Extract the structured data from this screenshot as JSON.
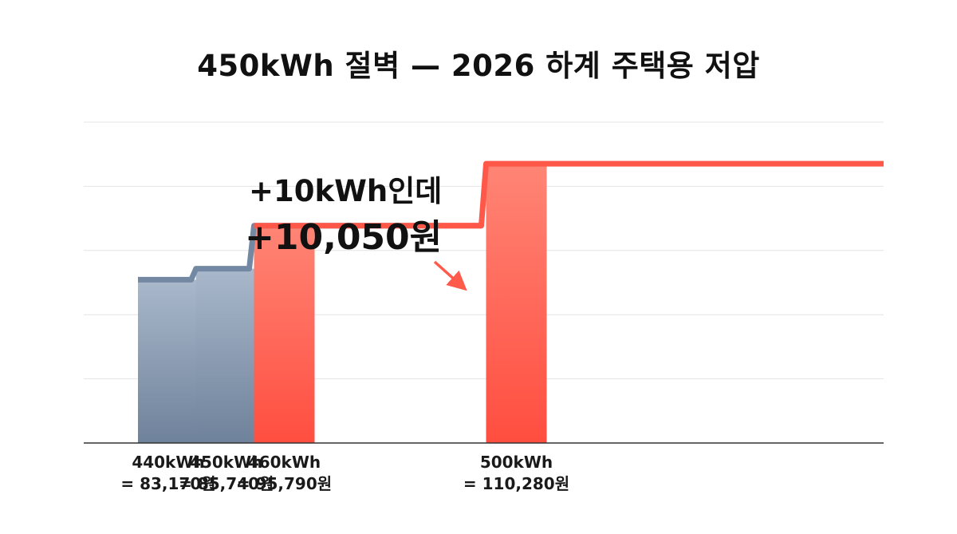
{
  "chart_data": {
    "type": "bar",
    "title": "450kWh 절벽 — 2026 하계 주택용 저압",
    "xlabel": "",
    "ylabel": "",
    "categories": [
      "440kWh",
      "450kWh",
      "460kWh",
      "500kWh"
    ],
    "x": [
      440,
      450,
      460,
      500
    ],
    "values": [
      83170,
      85740,
      95790,
      110280
    ],
    "value_labels": [
      "= 83,170원",
      "= 85,740원",
      "= 95,790원",
      "= 110,280원"
    ],
    "ylim": [
      45000,
      120000
    ],
    "grid": true,
    "legend": "none",
    "annotation": {
      "line1": "+10kWh인데",
      "line2": "+10,050원"
    },
    "colors": {
      "below_threshold_top": "#a9b8cb",
      "below_threshold_bottom": "#6f829b",
      "above_threshold_top": "#ff8575",
      "above_threshold_bottom": "#ff4e40",
      "step_line_low": "#7389a3",
      "step_line_high": "#ff5849",
      "grid": "#e4e4e4",
      "axis": "#333333",
      "arrow": "#ff5a4a"
    }
  }
}
